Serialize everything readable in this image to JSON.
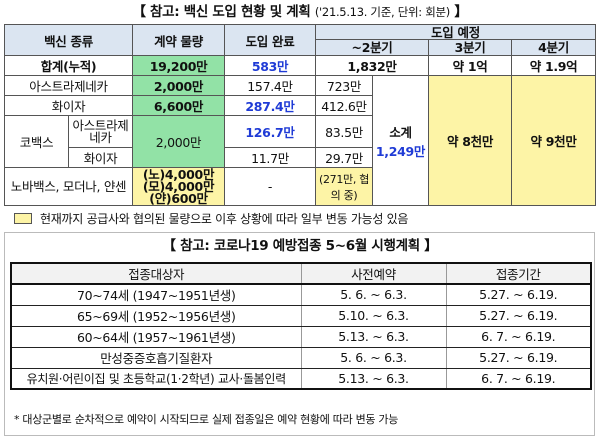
{
  "title1": {
    "main": "【 참고: 백신 도입 현황 및 계획",
    "sub": "('21.5.13. 기준, 단위: 회분)",
    "close": "】"
  },
  "t1": {
    "h_type": "백신 종류",
    "h_contract": "계약 물량",
    "h_done": "도입 완료",
    "h_plan": "도입 예정",
    "h_q2": "~2분기",
    "h_q3": "3분기",
    "h_q4": "4분기",
    "total": {
      "label": "합계(누적)",
      "contract": "19,200만",
      "done": "583만",
      "q2": "1,832만",
      "q3": "약 1억",
      "q4": "약 1.9억"
    },
    "astra": {
      "label": "아스트라제네카",
      "contract": "2,000만",
      "done": "157.4만",
      "q2": "723만"
    },
    "pfizer": {
      "label": "화이자",
      "contract": "6,600만",
      "done": "287.4만",
      "q2": "412.6만"
    },
    "covax": {
      "label": "코백스",
      "astra_label": "아스트라제네카",
      "contract": "2,000만",
      "done": "126.7만",
      "astra_q2": "83.5만",
      "pfizer_label": "화이자",
      "pfizer_done": "11.7만",
      "pfizer_q2": "29.7만"
    },
    "subtotal": {
      "label": "소계",
      "value": "1,249만"
    },
    "q3_all": "약 8천만",
    "q4_all": "약 9천만",
    "others": {
      "label": "노바백스, 모더나, 얀센",
      "contract_n": "(노)4,000만",
      "contract_m": "(모)4,000만",
      "contract_j": "(얀)600만",
      "done": "-",
      "plan": "(271만, 협의 중)"
    }
  },
  "note1": "현재까지 공급사와 협의된 물량으로 이후 상황에 따라 일부 변동 가능성 있음",
  "title2": "【 참고: 코로나19 예방접종 5~6월 시행계획 】",
  "t2": {
    "headers": [
      "접종대상자",
      "사전예약",
      "접종기간"
    ],
    "rows": [
      [
        "70~74세 (1947~1951년생)",
        "5. 6. ~ 6.3.",
        "5.27. ~ 6.19."
      ],
      [
        "65~69세 (1952~1956년생)",
        "5.10. ~ 6.3.",
        "5.27. ~ 6.19."
      ],
      [
        "60~64세 (1957~1961년생)",
        "5.13. ~ 6.3.",
        "6. 7. ~ 6.19."
      ],
      [
        "만성중증호흡기질환자",
        "5. 6. ~ 6.3.",
        "5.27. ~ 6.19."
      ],
      [
        "유치원·어린이집 및 초등학교(1·2학년) 교사·돌봄인력",
        "5.13. ~ 6.3.",
        "6. 7. ~ 6.19."
      ]
    ]
  },
  "footnote": "* 대상군별로 순차적으로 예약이 시작되므로 실제 접종일은 예약 현황에 따라 변동 가능",
  "colors": {
    "header": "#dbe5f1",
    "contract": "#92e2a6",
    "forecast": "#fdf4a6",
    "highlight": "#1f3bd6"
  }
}
